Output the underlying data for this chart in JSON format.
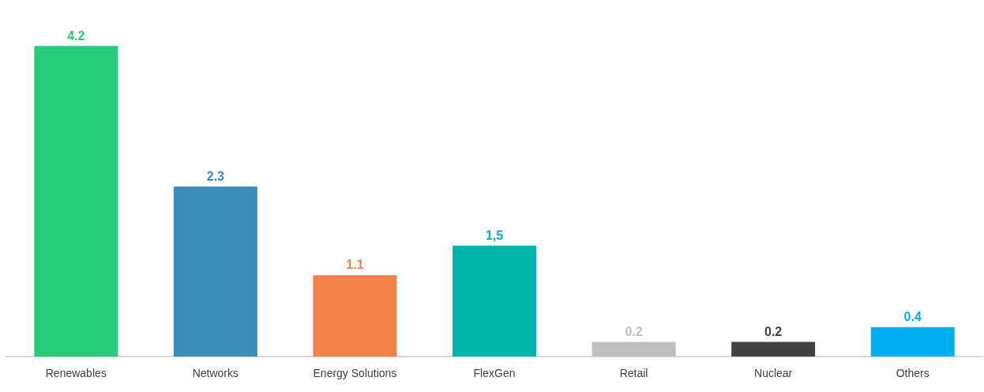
{
  "chart_data": {
    "type": "bar",
    "categories": [
      "Renewables",
      "Networks",
      "Energy Solutions",
      "FlexGen",
      "Retail",
      "Nuclear",
      "Others"
    ],
    "values": [
      4.2,
      2.3,
      1.1,
      1.5,
      0.2,
      0.2,
      0.4
    ],
    "colors": [
      "#26cc78",
      "#3a8db8",
      "#f0824a",
      "#00b4aa",
      "#bfbfbf",
      "#404040",
      "#00b0f0"
    ],
    "value_labels": [
      "4.2",
      "2.3",
      "1.1",
      "1,5",
      "0.2",
      "0.2",
      "0.4"
    ],
    "tick_labels": "x"
  }
}
